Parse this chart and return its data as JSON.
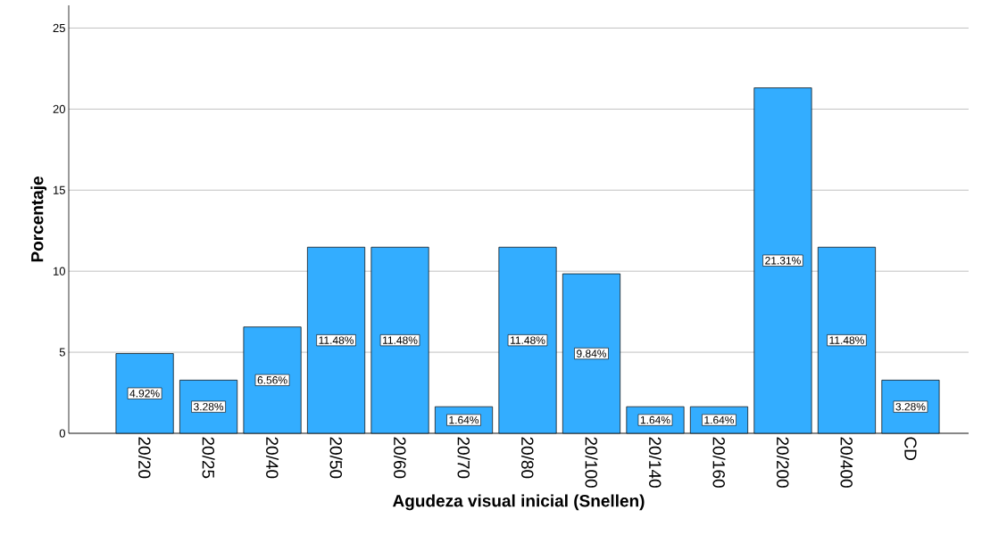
{
  "chart_data": {
    "type": "bar",
    "xlabel": "Agudeza visual inicial (Snellen)",
    "ylabel": "Porcentaje",
    "categories": [
      "20/20",
      "20/25",
      "20/40",
      "20/50",
      "20/60",
      "20/70",
      "20/80",
      "20/100",
      "20/140",
      "20/160",
      "20/200",
      "20/400",
      "CD"
    ],
    "values": [
      4.92,
      3.28,
      6.56,
      11.48,
      11.48,
      1.64,
      11.48,
      9.84,
      1.64,
      1.64,
      21.31,
      11.48,
      3.28
    ],
    "value_labels": [
      "4.92%",
      "3.28%",
      "6.56%",
      "11.48%",
      "11.48%",
      "1.64%",
      "11.48%",
      "9.84%",
      "1.64%",
      "1.64%",
      "21.31%",
      "11.48%",
      "3.28%"
    ],
    "color": "#33adff",
    "ylim": [
      0,
      26.4
    ],
    "yticks": [
      0,
      5,
      10,
      15,
      20,
      25
    ],
    "grid": "y"
  }
}
